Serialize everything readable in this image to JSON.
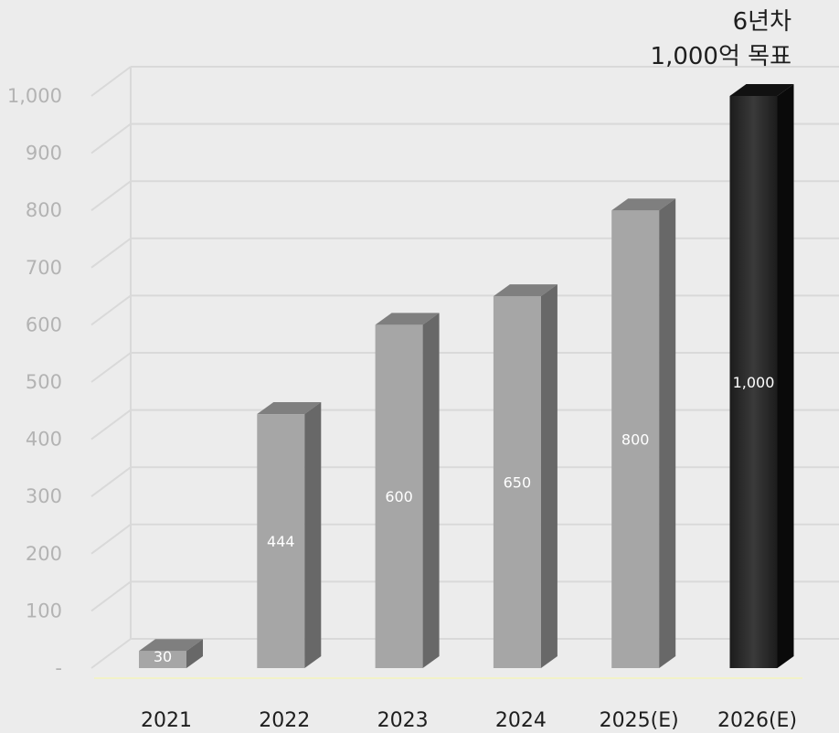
{
  "chart_data": {
    "type": "bar",
    "categories": [
      "2021",
      "2022",
      "2023",
      "2024",
      "2025(E)",
      "2026(E)"
    ],
    "values": [
      30,
      444,
      600,
      650,
      800,
      1000
    ],
    "data_labels": [
      "30",
      "444",
      "600",
      "650",
      "800",
      "1,000"
    ],
    "ylim": [
      0,
      1000
    ],
    "ytick_labels": [
      "-",
      "100",
      "200",
      "300",
      "400",
      "500",
      "600",
      "700",
      "800",
      "900",
      "1,000"
    ],
    "ytick_values": [
      0,
      100,
      200,
      300,
      400,
      500,
      600,
      700,
      800,
      900,
      1000
    ],
    "annotation": [
      "6년차",
      "1,000억 목표"
    ],
    "grid": true,
    "colors": {
      "bar_front": "#a6a6a6",
      "bar_top": "#7f7f7f",
      "bar_side": "#686868",
      "highlight_front": "#262626",
      "highlight_top": "#111111",
      "highlight_side": "#0a0a0a",
      "gridline": "#d9d9d9",
      "baseline": "#f2f2c8"
    },
    "highlight_index": 5
  }
}
